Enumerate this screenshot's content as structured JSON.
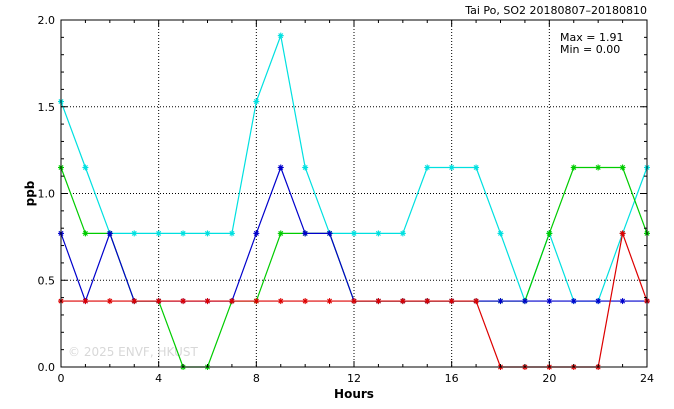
{
  "chart_data": {
    "type": "line",
    "title": "Tai Po, SO2 20180807–20180810",
    "xlabel": "Hours",
    "ylabel": "ppb",
    "xlim": [
      0,
      24
    ],
    "ylim": [
      0,
      2.0
    ],
    "x_ticks": [
      0,
      4,
      8,
      12,
      16,
      20,
      24
    ],
    "y_ticks": [
      0.0,
      0.5,
      1.0,
      1.5,
      2.0
    ],
    "x_tick_labels": [
      "0",
      "4",
      "8",
      "12",
      "16",
      "20",
      "24"
    ],
    "y_tick_labels": [
      "0.0",
      "0.5",
      "1.0",
      "1.5",
      "2.0"
    ],
    "grid": true,
    "x": [
      0,
      1,
      2,
      3,
      4,
      5,
      6,
      7,
      8,
      9,
      10,
      11,
      12,
      13,
      14,
      15,
      16,
      17,
      18,
      19,
      20,
      21,
      22,
      23,
      24
    ],
    "series": [
      {
        "color": "#00e0e0",
        "values": [
          1.53,
          1.15,
          0.77,
          0.77,
          0.77,
          0.77,
          0.77,
          0.77,
          1.53,
          1.91,
          1.15,
          0.77,
          0.77,
          0.77,
          0.77,
          1.15,
          1.15,
          1.15,
          0.77,
          0.38,
          0.77,
          0.38,
          0.38,
          0.77,
          1.15
        ]
      },
      {
        "color": "#00cc00",
        "values": [
          1.15,
          0.77,
          0.77,
          0.38,
          0.38,
          0.0,
          0.0,
          0.38,
          0.38,
          0.77,
          0.77,
          0.77,
          0.38,
          0.38,
          0.38,
          0.38,
          0.38,
          0.38,
          0.38,
          0.38,
          0.77,
          1.15,
          1.15,
          1.15,
          0.77
        ]
      },
      {
        "color": "#0000cc",
        "values": [
          0.77,
          0.38,
          0.77,
          0.38,
          0.38,
          0.38,
          0.38,
          0.38,
          0.77,
          1.15,
          0.77,
          0.77,
          0.38,
          0.38,
          0.38,
          0.38,
          0.38,
          0.38,
          0.38,
          0.38,
          0.38,
          0.38,
          0.38,
          0.38,
          0.38
        ]
      },
      {
        "color": "#dd0000",
        "values": [
          0.38,
          0.38,
          0.38,
          0.38,
          0.38,
          0.38,
          0.38,
          0.38,
          0.38,
          0.38,
          0.38,
          0.38,
          0.38,
          0.38,
          0.38,
          0.38,
          0.38,
          0.38,
          0.0,
          0.0,
          0.0,
          0.0,
          0.0,
          0.77,
          0.38
        ]
      }
    ],
    "annotations": {
      "max_text": "Max = 1.91",
      "min_text": "Min = 0.00"
    },
    "watermark": "© 2025  ENVF, HKUST"
  }
}
